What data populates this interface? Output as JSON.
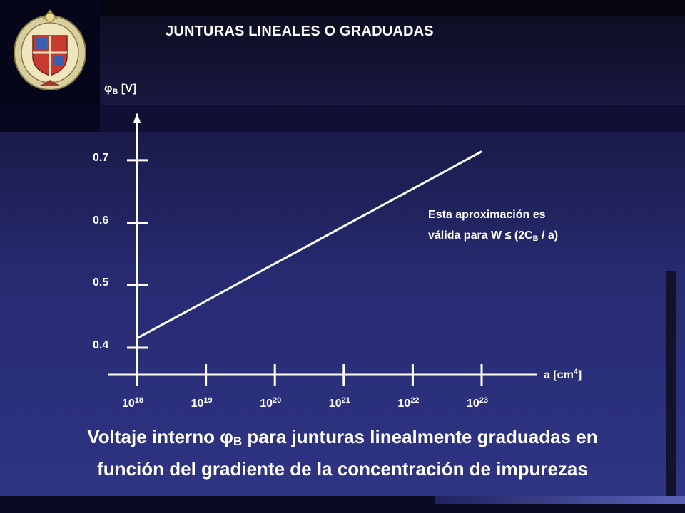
{
  "slide": {
    "title": "JUNTURAS LINEALES O GRADUADAS",
    "caption_line1_pre": "Voltaje interno ",
    "caption_phi": "φ",
    "caption_sub": "B",
    "caption_line1_post": " para junturas linealmente graduadas en",
    "caption_line2": "función del gradiente de la concentración de impurezas"
  },
  "logo": {
    "name": "university-seal"
  },
  "chart_data": {
    "type": "line",
    "x_scale": "log",
    "ylabel_symbol": "φ",
    "ylabel_sub": "B",
    "ylabel_unit": " [V]",
    "xlabel_text": "a [cm",
    "xlabel_sup": "4",
    "xlabel_close": "]",
    "y_ticks": [
      "0.4",
      "0.5",
      "0.6",
      "0.7"
    ],
    "x_ticks": [
      {
        "base": "10",
        "exp": "18"
      },
      {
        "base": "10",
        "exp": "19"
      },
      {
        "base": "10",
        "exp": "20"
      },
      {
        "base": "10",
        "exp": "21"
      },
      {
        "base": "10",
        "exp": "22"
      },
      {
        "base": "10",
        "exp": "23"
      }
    ],
    "series": [
      {
        "x": [
          1e+18,
          1e+23
        ],
        "y": [
          0.415,
          0.714
        ]
      }
    ],
    "annotation": {
      "line1": "Esta aproximación es",
      "line2_pre": "válida para W ",
      "line2_leq": "≤",
      "line2_mid": " (2C",
      "line2_sub": "B",
      "line2_post": " / a)"
    }
  }
}
